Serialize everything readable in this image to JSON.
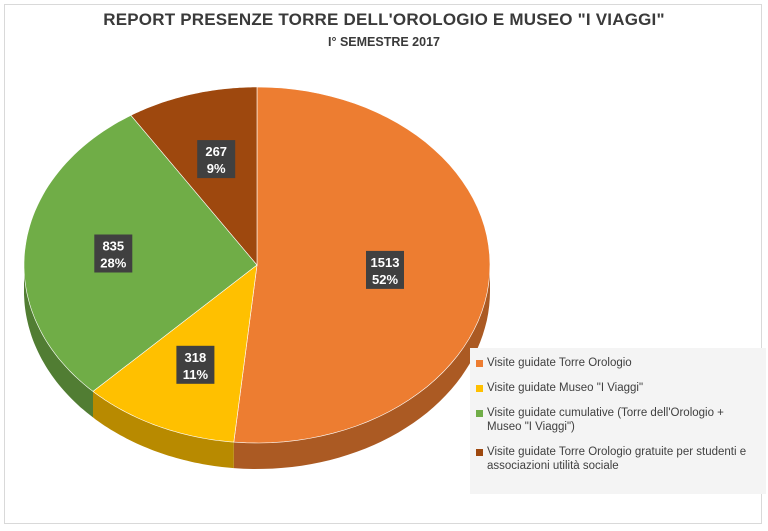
{
  "chart_data": {
    "type": "pie",
    "title": "REPORT PRESENZE TORRE DELL'OROLOGIO E MUSEO \"I VIAGGI\"",
    "subtitle": "I° SEMESTRE 2017",
    "legend_position": "bottom-right",
    "slices": [
      {
        "name": "Visite guidate Torre Orologio",
        "value": 1513,
        "percent": "52%",
        "color": "#ED7D31"
      },
      {
        "name": "Visite guidate Museo \"I Viaggi\"",
        "value": 318,
        "percent": "11%",
        "color": "#FFC000"
      },
      {
        "name": "Visite guidate cumulative (Torre dell'Orologio + Museo \"I Viaggi\")",
        "value": 835,
        "percent": "28%",
        "color": "#70AD47"
      },
      {
        "name": "Visite guidate Torre Orologio gratuite per studenti e associazioni utilità sociale",
        "value": 267,
        "percent": "9%",
        "color": "#9E480E"
      }
    ]
  }
}
